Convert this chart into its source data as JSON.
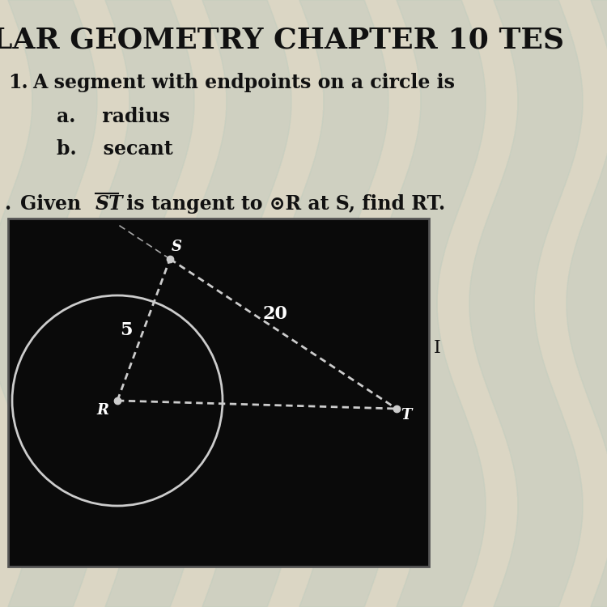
{
  "bg_color_top": "#e8e4d8",
  "bg_color": "#ddd8c8",
  "title_text": "LAR GEOMETRY CHAPTER 10 TES",
  "q1_num": "1.",
  "q1_text": "A segment with endpoints on a circle is",
  "q1a_text": "a.    radius",
  "q1b_text": "b.    secant",
  "q2_num": ".",
  "q2_given": "Given ",
  "q2_ST": "ST",
  "q2_rest": " is tangent to ⊙R at S, find RT.",
  "diagram_bg": "#0a0a0a",
  "point_color": "#cccccc",
  "line_color": "#cccccc",
  "circle_color": "#cccccc",
  "label_color": "#ffffff",
  "text_color": "#111111",
  "title_color": "#111111",
  "radius_label": "5",
  "tangent_label": "20"
}
